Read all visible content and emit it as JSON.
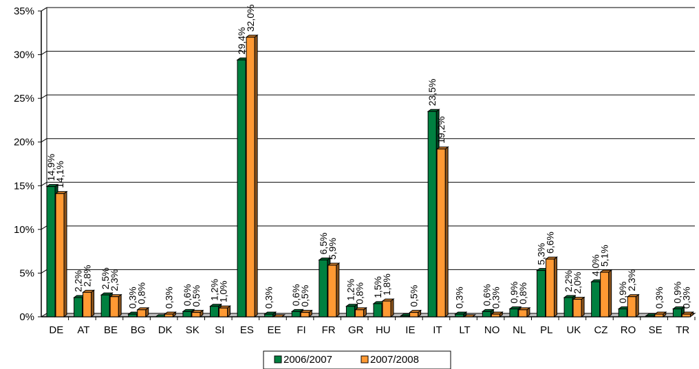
{
  "chart_data": {
    "type": "bar",
    "categories": [
      "DE",
      "AT",
      "BE",
      "BG",
      "DK",
      "SK",
      "SI",
      "ES",
      "EE",
      "FI",
      "FR",
      "GR",
      "HU",
      "IE",
      "IT",
      "LT",
      "NO",
      "NL",
      "PL",
      "UK",
      "CZ",
      "RO",
      "SE",
      "TR"
    ],
    "series": [
      {
        "name": "2006/2007",
        "color": "#008040",
        "values": [
          14.9,
          2.2,
          2.5,
          0.3,
          0.0,
          0.6,
          1.2,
          29.4,
          0.3,
          0.6,
          6.5,
          1.2,
          1.5,
          0.1,
          23.5,
          0.3,
          0.6,
          0.9,
          5.3,
          2.2,
          4.0,
          0.9,
          0.1,
          0.9
        ],
        "labels": [
          "14,9%",
          "2,2%",
          "2,5%",
          "0,3%",
          "",
          "0,6%",
          "1,2%",
          "29,4%",
          "0,3%",
          "0,6%",
          "6,5%",
          "1,2%",
          "1,5%",
          "",
          "23,5%",
          "0,3%",
          "0,6%",
          "0,9%",
          "5,3%",
          "2,2%",
          "4,0%",
          "0,9%",
          "",
          "0,9%"
        ]
      },
      {
        "name": "2007/2008",
        "color": "#ff9933",
        "values": [
          14.1,
          2.8,
          2.3,
          0.8,
          0.3,
          0.5,
          1.0,
          32.0,
          0.0,
          0.5,
          5.9,
          0.8,
          1.8,
          0.5,
          19.2,
          0.0,
          0.3,
          0.8,
          6.6,
          2.0,
          5.1,
          2.3,
          0.3,
          0.3
        ],
        "labels": [
          "14,1%",
          "2,8%",
          "2,3%",
          "0,8%",
          "0,3%",
          "0,5%",
          "1,0%",
          "32,0%",
          "",
          "0,5%",
          "5,9%",
          "0,8%",
          "1,8%",
          "0,5%",
          "19,2%",
          "",
          "0,3%",
          "0,8%",
          "6,6%",
          "2,0%",
          "5,1%",
          "2,3%",
          "0,3%",
          "0,3%"
        ]
      }
    ],
    "yticks": [
      "0%",
      "5%",
      "10%",
      "15%",
      "20%",
      "25%",
      "30%",
      "35%"
    ],
    "ylim": [
      0,
      35
    ],
    "grid": true,
    "legend": "bottom-center"
  }
}
